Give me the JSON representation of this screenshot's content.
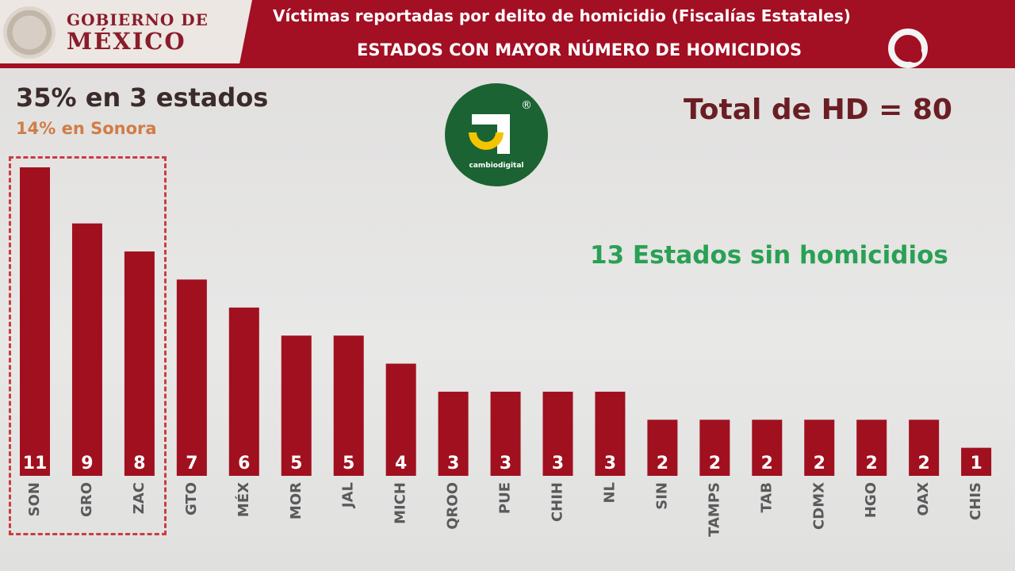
{
  "header": {
    "government": {
      "line1": "GOBIERNO DE",
      "line2": "MÉXICO"
    },
    "title": "Víctimas reportadas por delito de homicidio (Fiscalías Estatales)",
    "subtitle": "ESTADOS CON MAYOR NÚMERO DE HOMICIDIOS",
    "channel_logo": "once"
  },
  "callouts": {
    "top_three": "35% en 3 estados",
    "sonora": "14% en Sonora",
    "total": "Total de HD = 80",
    "no_homicides": "13 Estados sin homicidios"
  },
  "watermark": {
    "text": "cambiodigital",
    "mark": "®"
  },
  "colors": {
    "header": "#a30f23",
    "bar": "#a0101f",
    "highlight": "#cc3d3d",
    "green_text": "#2aa055",
    "label_text": "#5a5a5a"
  },
  "chart_data": {
    "type": "bar",
    "categories": [
      "SON",
      "GRO",
      "ZAC",
      "GTO",
      "MÉX",
      "MOR",
      "JAL",
      "MICH",
      "QROO",
      "PUE",
      "CHIH",
      "NL",
      "SIN",
      "TAMPS",
      "TAB",
      "CDMX",
      "HGO",
      "OAX",
      "CHIS"
    ],
    "values": [
      11,
      9,
      8,
      7,
      6,
      5,
      5,
      4,
      3,
      3,
      3,
      3,
      2,
      2,
      2,
      2,
      2,
      2,
      1
    ],
    "title": "Víctimas reportadas por delito de homicidio (Fiscalías Estatales)",
    "subtitle": "ESTADOS CON MAYOR NÚMERO DE HOMICIDIOS",
    "xlabel": "",
    "ylabel": "",
    "ylim": [
      0,
      11
    ],
    "grid": false,
    "highlighted_categories": [
      "SON",
      "GRO",
      "ZAC"
    ]
  }
}
